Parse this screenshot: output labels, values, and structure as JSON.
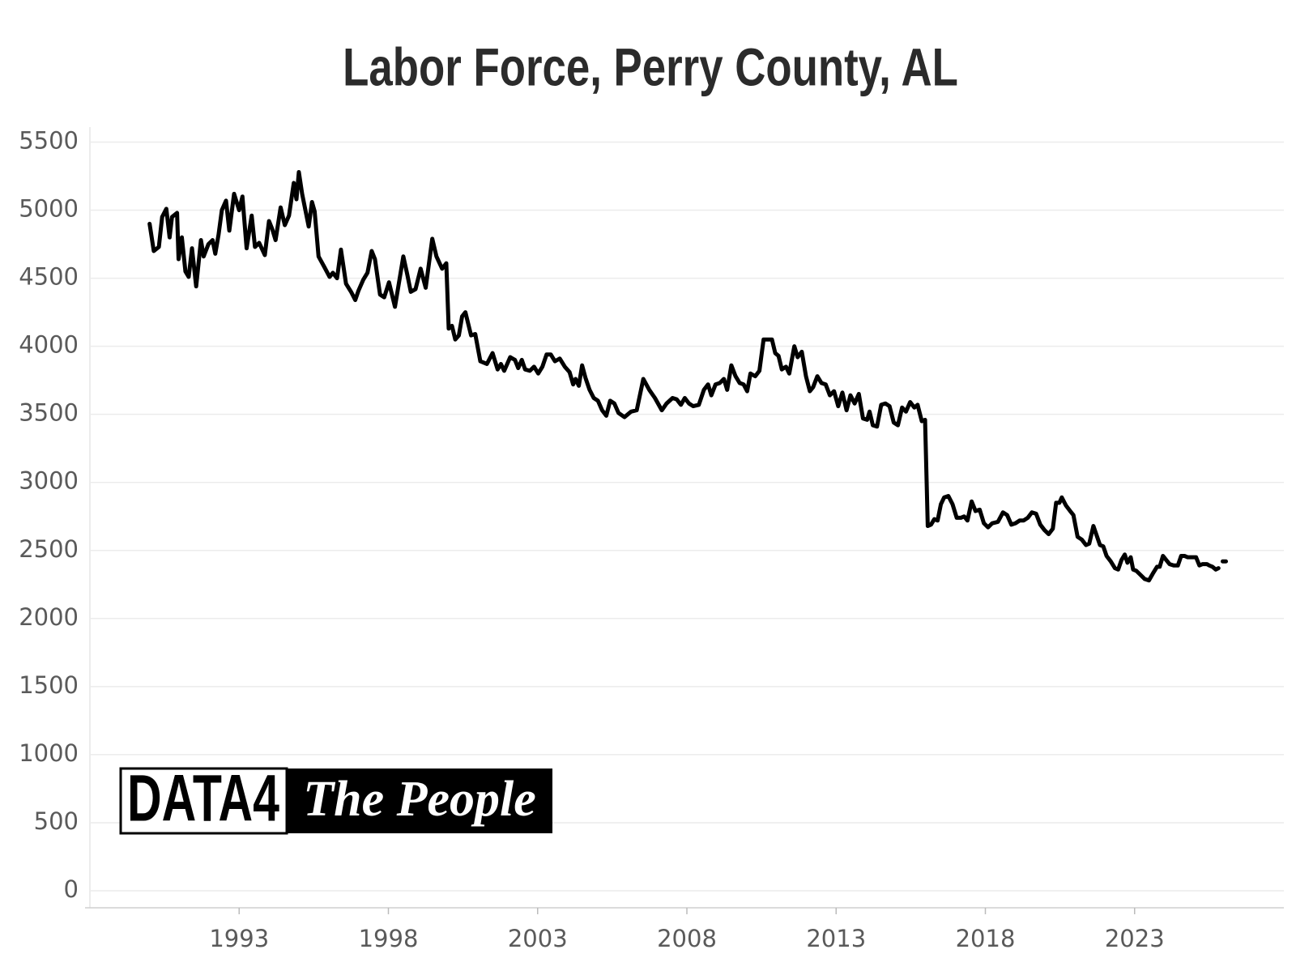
{
  "chart_data": {
    "type": "line",
    "title": "Labor Force, Perry County, AL",
    "logo": {
      "left": "DATA4",
      "right": "The People"
    },
    "color": "#000000",
    "grid": true,
    "xlim": [
      1988,
      2028
    ],
    "xticks": [
      1993,
      1998,
      2003,
      2008,
      2013,
      2018,
      2023
    ],
    "ylim": [
      -125,
      5610
    ],
    "yticks": [
      0,
      500,
      1000,
      1500,
      2000,
      2500,
      3000,
      3500,
      4000,
      4500,
      5000,
      5500
    ],
    "x": [
      1990.0,
      1990.14,
      1990.31,
      1990.42,
      1990.56,
      1990.67,
      1990.75,
      1990.92,
      1990.97,
      1991.08,
      1991.2,
      1991.31,
      1991.42,
      1991.56,
      1991.72,
      1991.81,
      1991.97,
      1992.11,
      1992.2,
      1992.31,
      1992.42,
      1992.56,
      1992.67,
      1992.83,
      1993.0,
      1993.11,
      1993.25,
      1993.42,
      1993.53,
      1993.67,
      1993.86,
      1994.0,
      1994.11,
      1994.22,
      1994.39,
      1994.53,
      1994.67,
      1994.83,
      1994.92,
      1995.0,
      1995.11,
      1995.33,
      1995.44,
      1995.53,
      1995.66,
      1995.86,
      1996.03,
      1996.14,
      1996.28,
      1996.41,
      1996.58,
      1996.75,
      1996.89,
      1997.0,
      1997.16,
      1997.3,
      1997.44,
      1997.55,
      1997.72,
      1997.86,
      1998.02,
      1998.22,
      1998.5,
      1998.63,
      1998.75,
      1998.91,
      1999.08,
      1999.25,
      1999.47,
      1999.61,
      1999.8,
      1999.94,
      2000.02,
      2000.13,
      2000.24,
      2000.36,
      2000.47,
      2000.58,
      2000.77,
      2000.91,
      2001.08,
      2001.3,
      2001.49,
      2001.66,
      2001.77,
      2001.88,
      2002.08,
      2002.24,
      2002.35,
      2002.47,
      2002.58,
      2002.74,
      2002.88,
      2003.02,
      2003.16,
      2003.3,
      2003.44,
      2003.58,
      2003.74,
      2003.91,
      2004.07,
      2004.19,
      2004.27,
      2004.38,
      2004.49,
      2004.6,
      2004.74,
      2004.88,
      2005.02,
      2005.16,
      2005.3,
      2005.43,
      2005.57,
      2005.71,
      2005.91,
      2006.13,
      2006.32,
      2006.54,
      2006.74,
      2006.93,
      2007.16,
      2007.32,
      2007.52,
      2007.66,
      2007.8,
      2007.93,
      2008.07,
      2008.21,
      2008.4,
      2008.57,
      2008.71,
      2008.82,
      2008.96,
      2009.1,
      2009.24,
      2009.35,
      2009.49,
      2009.63,
      2009.77,
      2009.9,
      2010.02,
      2010.13,
      2010.29,
      2010.43,
      2010.57,
      2010.71,
      2010.85,
      2010.96,
      2011.07,
      2011.18,
      2011.32,
      2011.43,
      2011.6,
      2011.71,
      2011.85,
      2011.99,
      2012.12,
      2012.23,
      2012.37,
      2012.51,
      2012.65,
      2012.79,
      2012.93,
      2013.07,
      2013.21,
      2013.35,
      2013.48,
      2013.62,
      2013.76,
      2013.9,
      2014.04,
      2014.12,
      2014.23,
      2014.37,
      2014.51,
      2014.65,
      2014.79,
      2014.93,
      2015.07,
      2015.21,
      2015.34,
      2015.48,
      2015.62,
      2015.73,
      2015.87,
      2015.98,
      2016.07,
      2016.18,
      2016.29,
      2016.4,
      2016.51,
      2016.62,
      2016.76,
      2016.9,
      2017.04,
      2017.18,
      2017.29,
      2017.4,
      2017.54,
      2017.67,
      2017.81,
      2017.95,
      2018.09,
      2018.23,
      2018.42,
      2018.59,
      2018.73,
      2018.87,
      2019.01,
      2019.15,
      2019.28,
      2019.42,
      2019.56,
      2019.7,
      2019.84,
      2019.98,
      2020.12,
      2020.26,
      2020.37,
      2020.48,
      2020.56,
      2020.7,
      2020.84,
      2020.95,
      2021.09,
      2021.23,
      2021.37,
      2021.48,
      2021.62,
      2021.73,
      2021.84,
      2021.95,
      2022.06,
      2022.2,
      2022.34,
      2022.45,
      2022.56,
      2022.67,
      2022.76,
      2022.87,
      2022.95,
      2023.06,
      2023.2,
      2023.34,
      2023.48,
      2023.61,
      2023.75,
      2023.84,
      2023.95,
      2024.06,
      2024.17,
      2024.31,
      2024.45,
      2024.56,
      2024.67,
      2024.78,
      2024.92,
      2025.06,
      2025.17,
      2025.28,
      2025.42,
      2025.5,
      2025.61,
      2025.72,
      2025.81,
      2025.88,
      2025.95,
      2026.06
    ],
    "values": [
      4900,
      4700,
      4730,
      4950,
      5010,
      4800,
      4950,
      4980,
      4640,
      4800,
      4550,
      4510,
      4720,
      4440,
      4780,
      4660,
      4750,
      4780,
      4680,
      4820,
      5000,
      5070,
      4850,
      5120,
      5000,
      5100,
      4720,
      4960,
      4730,
      4760,
      4670,
      4920,
      4860,
      4780,
      5020,
      4890,
      4960,
      5200,
      5080,
      5280,
      5120,
      4880,
      5060,
      4990,
      4660,
      4580,
      4510,
      4540,
      4500,
      4710,
      4460,
      4400,
      4340,
      4410,
      4490,
      4540,
      4700,
      4640,
      4380,
      4360,
      4470,
      4290,
      4660,
      4530,
      4400,
      4420,
      4570,
      4430,
      4790,
      4660,
      4570,
      4610,
      4130,
      4150,
      4050,
      4080,
      4220,
      4250,
      4080,
      4090,
      3890,
      3870,
      3950,
      3830,
      3870,
      3820,
      3920,
      3900,
      3840,
      3900,
      3830,
      3820,
      3850,
      3800,
      3850,
      3940,
      3940,
      3890,
      3910,
      3850,
      3810,
      3720,
      3760,
      3710,
      3860,
      3770,
      3680,
      3620,
      3600,
      3530,
      3490,
      3600,
      3580,
      3510,
      3480,
      3520,
      3530,
      3760,
      3680,
      3620,
      3530,
      3580,
      3620,
      3610,
      3570,
      3620,
      3580,
      3560,
      3570,
      3680,
      3720,
      3640,
      3720,
      3730,
      3760,
      3680,
      3860,
      3780,
      3730,
      3720,
      3670,
      3800,
      3780,
      3820,
      4050,
      4050,
      4050,
      3950,
      3930,
      3830,
      3850,
      3800,
      4000,
      3920,
      3960,
      3780,
      3670,
      3700,
      3780,
      3730,
      3720,
      3640,
      3670,
      3560,
      3660,
      3530,
      3640,
      3580,
      3650,
      3470,
      3460,
      3520,
      3420,
      3410,
      3570,
      3580,
      3560,
      3440,
      3420,
      3550,
      3520,
      3590,
      3550,
      3570,
      3450,
      3460,
      2680,
      2690,
      2730,
      2720,
      2840,
      2890,
      2900,
      2840,
      2740,
      2740,
      2750,
      2720,
      2860,
      2790,
      2800,
      2700,
      2670,
      2700,
      2710,
      2780,
      2760,
      2690,
      2700,
      2720,
      2720,
      2740,
      2780,
      2770,
      2690,
      2650,
      2620,
      2660,
      2850,
      2850,
      2890,
      2830,
      2790,
      2760,
      2600,
      2580,
      2540,
      2550,
      2680,
      2610,
      2540,
      2530,
      2460,
      2420,
      2370,
      2360,
      2430,
      2470,
      2410,
      2450,
      2360,
      2350,
      2320,
      2290,
      2280,
      2330,
      2380,
      2380,
      2460,
      2430,
      2400,
      2390,
      2390,
      2460,
      2460,
      2450,
      2450,
      2450,
      2390,
      2400,
      2400,
      2390,
      2380,
      2360,
      2370,
      null,
      2420,
      2420
    ]
  }
}
